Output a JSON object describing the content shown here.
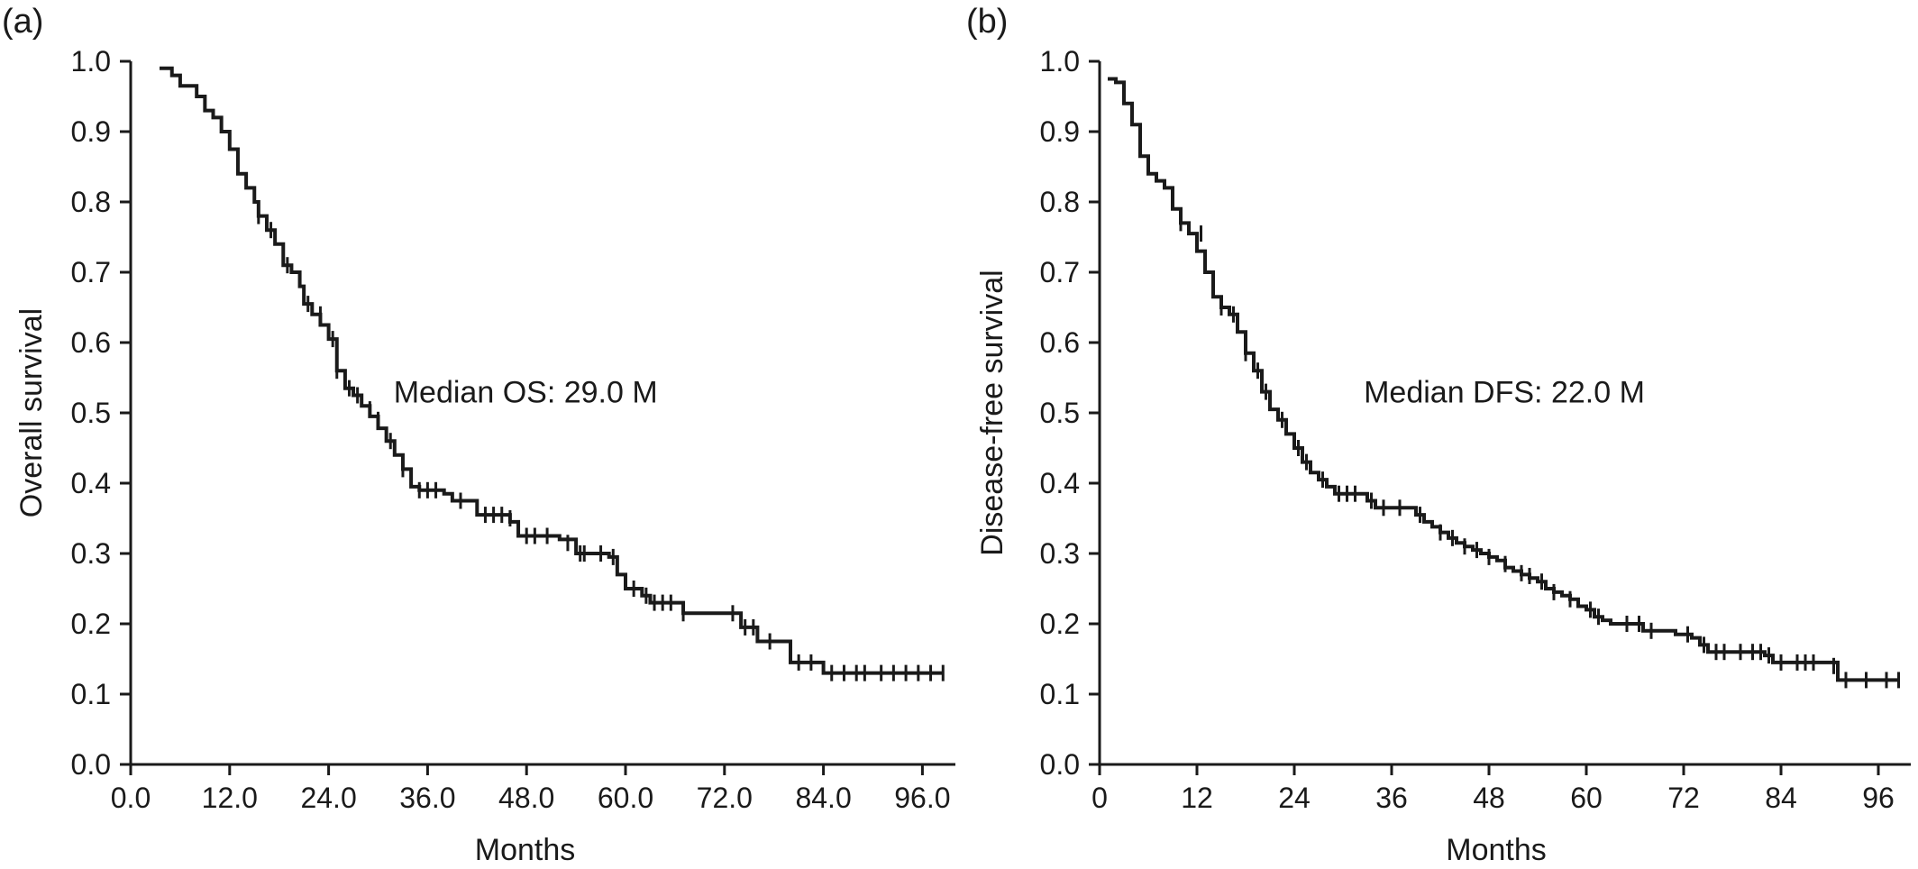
{
  "chart_data": [
    {
      "panel": "(a)",
      "type": "line",
      "style": "step",
      "xlabel": "Months",
      "ylabel": "Overall survival",
      "xlim": [
        0,
        100
      ],
      "ylim": [
        0,
        1
      ],
      "xticks": [
        "0.0",
        "12.0",
        "24.0",
        "36.0",
        "48.0",
        "60.0",
        "72.0",
        "84.0",
        "96.0"
      ],
      "xtick_values": [
        0,
        12,
        24,
        36,
        48,
        60,
        72,
        84,
        96
      ],
      "yticks": [
        "0.0",
        "0.1",
        "0.2",
        "0.3",
        "0.4",
        "0.5",
        "0.6",
        "0.7",
        "0.8",
        "0.9",
        "1.0"
      ],
      "ytick_values": [
        0,
        0.1,
        0.2,
        0.3,
        0.4,
        0.5,
        0.6,
        0.7,
        0.8,
        0.9,
        1.0
      ],
      "annotation": "Median OS: 29.0 M",
      "annotation_at": [
        48,
        0.53
      ],
      "grid": false,
      "steps": [
        [
          3.5,
          0.99
        ],
        [
          5,
          0.98
        ],
        [
          6,
          0.965
        ],
        [
          8,
          0.95
        ],
        [
          9,
          0.93
        ],
        [
          10,
          0.92
        ],
        [
          11,
          0.9
        ],
        [
          12,
          0.875
        ],
        [
          13,
          0.84
        ],
        [
          14,
          0.82
        ],
        [
          15,
          0.8
        ],
        [
          15.5,
          0.78
        ],
        [
          16.5,
          0.76
        ],
        [
          17.5,
          0.74
        ],
        [
          18.5,
          0.71
        ],
        [
          19.5,
          0.7
        ],
        [
          20.5,
          0.68
        ],
        [
          21,
          0.655
        ],
        [
          22,
          0.64
        ],
        [
          23,
          0.625
        ],
        [
          24,
          0.605
        ],
        [
          25,
          0.56
        ],
        [
          26,
          0.535
        ],
        [
          27,
          0.525
        ],
        [
          28,
          0.51
        ],
        [
          29,
          0.495
        ],
        [
          30,
          0.478
        ],
        [
          31,
          0.46
        ],
        [
          32,
          0.44
        ],
        [
          33,
          0.42
        ],
        [
          34,
          0.395
        ],
        [
          35,
          0.39
        ],
        [
          38,
          0.385
        ],
        [
          39,
          0.375
        ],
        [
          42,
          0.355
        ],
        [
          46,
          0.345
        ],
        [
          47,
          0.325
        ],
        [
          52,
          0.32
        ],
        [
          54,
          0.3
        ],
        [
          58,
          0.295
        ],
        [
          59,
          0.27
        ],
        [
          60,
          0.25
        ],
        [
          62,
          0.24
        ],
        [
          63,
          0.23
        ],
        [
          67,
          0.215
        ],
        [
          74,
          0.195
        ],
        [
          76,
          0.175
        ],
        [
          80,
          0.145
        ],
        [
          84,
          0.13
        ]
      ],
      "end_x": 98.5,
      "censored": [
        [
          15.5,
          0.78
        ],
        [
          17,
          0.76
        ],
        [
          19,
          0.71
        ],
        [
          21.5,
          0.655
        ],
        [
          23,
          0.64
        ],
        [
          24.5,
          0.605
        ],
        [
          25,
          0.56
        ],
        [
          26.5,
          0.535
        ],
        [
          27.5,
          0.525
        ],
        [
          29,
          0.505
        ],
        [
          30,
          0.49
        ],
        [
          31.5,
          0.46
        ],
        [
          33,
          0.42
        ],
        [
          35,
          0.39
        ],
        [
          36,
          0.39
        ],
        [
          37,
          0.39
        ],
        [
          40,
          0.375
        ],
        [
          43,
          0.355
        ],
        [
          44,
          0.355
        ],
        [
          45,
          0.355
        ],
        [
          46,
          0.35
        ],
        [
          48,
          0.325
        ],
        [
          49,
          0.325
        ],
        [
          50.5,
          0.325
        ],
        [
          53,
          0.315
        ],
        [
          54.5,
          0.3
        ],
        [
          55,
          0.3
        ],
        [
          57,
          0.3
        ],
        [
          58.5,
          0.295
        ],
        [
          61,
          0.25
        ],
        [
          62.5,
          0.24
        ],
        [
          63.5,
          0.23
        ],
        [
          64.5,
          0.23
        ],
        [
          65.5,
          0.23
        ],
        [
          67,
          0.215
        ],
        [
          73,
          0.215
        ],
        [
          74.5,
          0.195
        ],
        [
          75.5,
          0.195
        ],
        [
          77.5,
          0.175
        ],
        [
          81,
          0.145
        ],
        [
          82.5,
          0.145
        ],
        [
          85,
          0.13
        ],
        [
          86.5,
          0.13
        ],
        [
          88,
          0.13
        ],
        [
          89,
          0.13
        ],
        [
          91,
          0.13
        ],
        [
          92.5,
          0.13
        ],
        [
          94,
          0.13
        ],
        [
          95.5,
          0.13
        ],
        [
          97,
          0.13
        ],
        [
          98.5,
          0.13
        ]
      ]
    },
    {
      "panel": "(b)",
      "type": "line",
      "style": "step",
      "xlabel": "Months",
      "ylabel": "Disease-free survival",
      "xlim": [
        0,
        100
      ],
      "ylim": [
        0,
        1
      ],
      "xticks": [
        "0",
        "12",
        "24",
        "36",
        "48",
        "60",
        "72",
        "84",
        "96"
      ],
      "xtick_values": [
        0,
        12,
        24,
        36,
        48,
        60,
        72,
        84,
        96
      ],
      "yticks": [
        "0.0",
        "0.1",
        "0.2",
        "0.3",
        "0.4",
        "0.5",
        "0.6",
        "0.7",
        "0.8",
        "0.9",
        "1.0"
      ],
      "ytick_values": [
        0,
        0.1,
        0.2,
        0.3,
        0.4,
        0.5,
        0.6,
        0.7,
        0.8,
        0.9,
        1.0
      ],
      "annotation": "Median DFS: 22.0 M",
      "annotation_at": [
        50,
        0.53
      ],
      "grid": false,
      "steps": [
        [
          1,
          0.975
        ],
        [
          2,
          0.97
        ],
        [
          3,
          0.94
        ],
        [
          4,
          0.91
        ],
        [
          5,
          0.865
        ],
        [
          6,
          0.84
        ],
        [
          7,
          0.83
        ],
        [
          8,
          0.82
        ],
        [
          9,
          0.79
        ],
        [
          10,
          0.77
        ],
        [
          11,
          0.755
        ],
        [
          12,
          0.73
        ],
        [
          13,
          0.7
        ],
        [
          14,
          0.665
        ],
        [
          15,
          0.65
        ],
        [
          16,
          0.64
        ],
        [
          17,
          0.615
        ],
        [
          18,
          0.585
        ],
        [
          19,
          0.56
        ],
        [
          20,
          0.53
        ],
        [
          21,
          0.505
        ],
        [
          22,
          0.49
        ],
        [
          23,
          0.47
        ],
        [
          24,
          0.45
        ],
        [
          25,
          0.43
        ],
        [
          26,
          0.415
        ],
        [
          27,
          0.405
        ],
        [
          28,
          0.395
        ],
        [
          29,
          0.385
        ],
        [
          33,
          0.375
        ],
        [
          34,
          0.365
        ],
        [
          39,
          0.355
        ],
        [
          40,
          0.345
        ],
        [
          41,
          0.338
        ],
        [
          42,
          0.33
        ],
        [
          43,
          0.322
        ],
        [
          44,
          0.315
        ],
        [
          45,
          0.31
        ],
        [
          46,
          0.305
        ],
        [
          47,
          0.3
        ],
        [
          48,
          0.295
        ],
        [
          49,
          0.29
        ],
        [
          50,
          0.28
        ],
        [
          51,
          0.275
        ],
        [
          52,
          0.27
        ],
        [
          53,
          0.265
        ],
        [
          54,
          0.26
        ],
        [
          55,
          0.25
        ],
        [
          56,
          0.245
        ],
        [
          57,
          0.24
        ],
        [
          58,
          0.235
        ],
        [
          59,
          0.225
        ],
        [
          60,
          0.22
        ],
        [
          61,
          0.21
        ],
        [
          62,
          0.205
        ],
        [
          63,
          0.2
        ],
        [
          67,
          0.19
        ],
        [
          71,
          0.185
        ],
        [
          73,
          0.18
        ],
        [
          74,
          0.17
        ],
        [
          75,
          0.16
        ],
        [
          82,
          0.155
        ],
        [
          83,
          0.145
        ],
        [
          91,
          0.12
        ]
      ],
      "end_x": 98.5,
      "censored": [
        [
          10,
          0.77
        ],
        [
          12.5,
          0.755
        ],
        [
          15,
          0.65
        ],
        [
          16.5,
          0.64
        ],
        [
          18,
          0.585
        ],
        [
          19.5,
          0.56
        ],
        [
          20.5,
          0.53
        ],
        [
          22.5,
          0.49
        ],
        [
          24.5,
          0.45
        ],
        [
          25.5,
          0.43
        ],
        [
          27.5,
          0.405
        ],
        [
          29.5,
          0.385
        ],
        [
          30.5,
          0.385
        ],
        [
          31.5,
          0.385
        ],
        [
          33.5,
          0.375
        ],
        [
          35,
          0.365
        ],
        [
          37,
          0.365
        ],
        [
          39.5,
          0.355
        ],
        [
          42,
          0.33
        ],
        [
          43.5,
          0.322
        ],
        [
          45,
          0.31
        ],
        [
          46.5,
          0.305
        ],
        [
          48,
          0.295
        ],
        [
          50,
          0.285
        ],
        [
          52,
          0.272
        ],
        [
          53,
          0.268
        ],
        [
          54.5,
          0.26
        ],
        [
          56,
          0.245
        ],
        [
          58,
          0.235
        ],
        [
          60.5,
          0.22
        ],
        [
          61.5,
          0.21
        ],
        [
          65,
          0.2
        ],
        [
          66.5,
          0.2
        ],
        [
          68,
          0.19
        ],
        [
          72.5,
          0.185
        ],
        [
          74.5,
          0.17
        ],
        [
          76,
          0.16
        ],
        [
          77,
          0.16
        ],
        [
          79,
          0.16
        ],
        [
          80.5,
          0.16
        ],
        [
          81.5,
          0.16
        ],
        [
          82.5,
          0.155
        ],
        [
          84,
          0.145
        ],
        [
          86,
          0.145
        ],
        [
          87,
          0.145
        ],
        [
          88,
          0.145
        ],
        [
          90.5,
          0.14
        ],
        [
          92,
          0.12
        ],
        [
          94.5,
          0.12
        ],
        [
          97,
          0.12
        ],
        [
          98.5,
          0.12
        ]
      ]
    }
  ]
}
